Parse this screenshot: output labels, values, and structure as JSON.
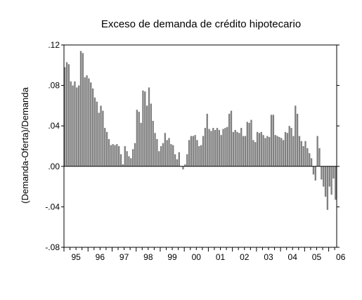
{
  "chart_data": {
    "type": "bar",
    "title": "Exceso de demanda de crédito hipotecario",
    "xlabel": "",
    "ylabel": "(Demanda-Oferta)/Demanda",
    "ylim": [
      -0.08,
      0.12
    ],
    "yticks": [
      0.12,
      0.08,
      0.04,
      0.0,
      -0.04,
      -0.08
    ],
    "ytick_labels": [
      ".12",
      ".08",
      ".04",
      ".00",
      "-.04",
      "-.08"
    ],
    "xtick_labels": [
      "95",
      "96",
      "97",
      "98",
      "99",
      "00",
      "01",
      "02",
      "03",
      "04",
      "05",
      "06"
    ],
    "start": "1995-01",
    "frequency": "monthly",
    "bar_color": "#808080",
    "grid": false,
    "legend": "none",
    "series": [
      {
        "values": [
          0.098,
          0.103,
          0.101,
          0.084,
          0.08,
          0.084,
          0.078,
          0.08,
          0.114,
          0.112,
          0.088,
          0.09,
          0.087,
          0.083,
          0.077,
          0.068,
          0.064,
          0.053,
          0.06,
          0.055,
          0.038,
          0.034,
          0.027,
          0.021,
          0.022,
          0.021,
          0.022,
          0.02,
          0.012,
          0.002,
          0.02,
          0.015,
          0.01,
          0.008,
          0.017,
          0.023,
          0.056,
          0.054,
          0.043,
          0.075,
          0.074,
          0.06,
          0.078,
          0.062,
          0.045,
          0.033,
          0.027,
          0.015,
          0.02,
          0.023,
          0.033,
          0.026,
          0.028,
          0.022,
          0.021,
          0.012,
          0.007,
          0.014,
          0.0,
          -0.003,
          0.002,
          0.012,
          0.026,
          0.03,
          0.03,
          0.031,
          0.026,
          0.02,
          0.021,
          0.03,
          0.038,
          0.052,
          0.037,
          0.035,
          0.038,
          0.036,
          0.038,
          0.036,
          0.031,
          0.037,
          0.038,
          0.039,
          0.052,
          0.055,
          0.034,
          0.036,
          0.034,
          0.033,
          0.038,
          0.03,
          0.03,
          0.044,
          0.043,
          0.046,
          0.026,
          0.024,
          0.034,
          0.033,
          0.034,
          0.031,
          0.028,
          0.03,
          0.029,
          0.051,
          0.051,
          0.031,
          0.03,
          0.029,
          0.028,
          0.026,
          0.034,
          0.033,
          0.04,
          0.038,
          0.03,
          0.06,
          0.052,
          0.03,
          0.025,
          0.02,
          0.025,
          0.018,
          0.013,
          0.008,
          -0.008,
          -0.014,
          0.03,
          0.018,
          -0.013,
          -0.02,
          -0.03,
          -0.043,
          -0.02,
          -0.028,
          -0.012,
          -0.033
        ]
      }
    ]
  }
}
